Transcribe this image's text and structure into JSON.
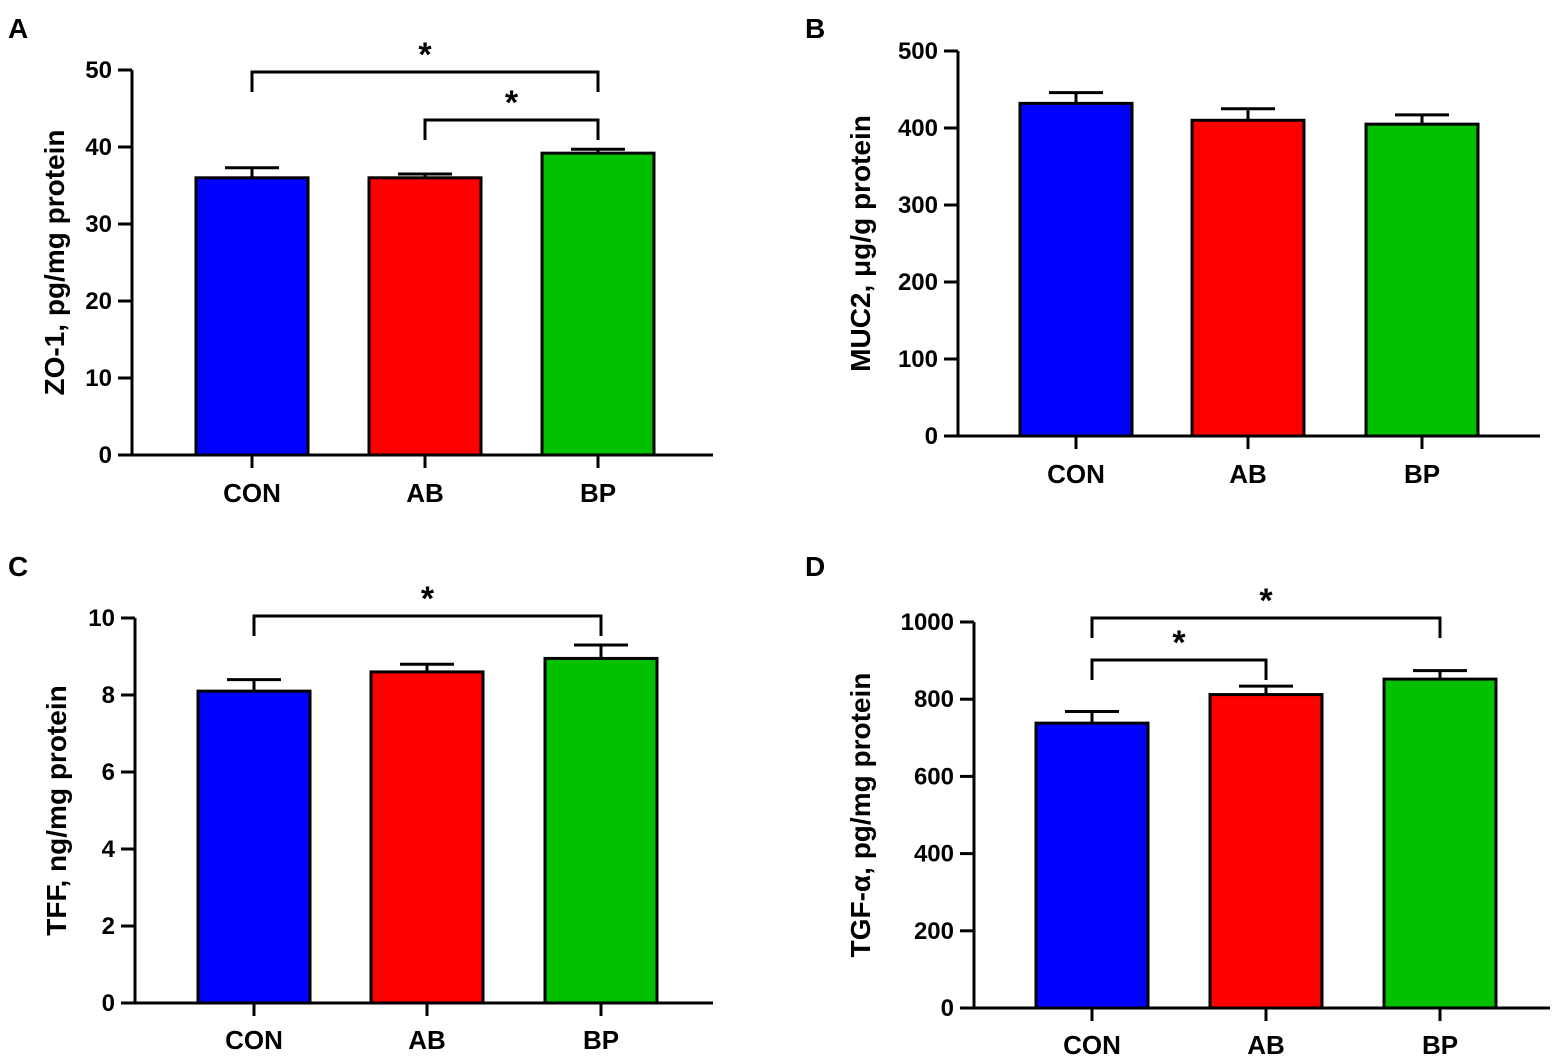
{
  "colors": {
    "CON": "#0000ff",
    "AB": "#ff0000",
    "BP": "#00c000",
    "ink": "#000000"
  },
  "chart_data": [
    {
      "panel": "A",
      "type": "bar",
      "categories": [
        "CON",
        "AB",
        "BP"
      ],
      "values": [
        36,
        36,
        39.2
      ],
      "errors": [
        1.3,
        0.5,
        0.5
      ],
      "ylabel": "ZO-1, pg/mg protein",
      "ylim": [
        0,
        50
      ],
      "yticks": [
        0,
        10,
        20,
        30,
        40,
        50
      ],
      "significance": [
        {
          "from": "CON",
          "to": "BP",
          "label": "*"
        },
        {
          "from": "AB",
          "to": "BP",
          "label": "*"
        }
      ]
    },
    {
      "panel": "B",
      "type": "bar",
      "categories": [
        "CON",
        "AB",
        "BP"
      ],
      "values": [
        432,
        410,
        405
      ],
      "errors": [
        14,
        15,
        12
      ],
      "ylabel": "MUC2, μg/g protein",
      "ylim": [
        0,
        500
      ],
      "yticks": [
        0,
        100,
        200,
        300,
        400,
        500
      ],
      "significance": []
    },
    {
      "panel": "C",
      "type": "bar",
      "categories": [
        "CON",
        "AB",
        "BP"
      ],
      "values": [
        8.1,
        8.6,
        8.95
      ],
      "errors": [
        0.3,
        0.2,
        0.35
      ],
      "ylabel": "TFF, ng/mg protein",
      "ylim": [
        0,
        10
      ],
      "yticks": [
        0,
        2,
        4,
        6,
        8,
        10
      ],
      "significance": [
        {
          "from": "CON",
          "to": "BP",
          "label": "*"
        }
      ]
    },
    {
      "panel": "D",
      "type": "bar",
      "categories": [
        "CON",
        "AB",
        "BP"
      ],
      "values": [
        738,
        812,
        852
      ],
      "errors": [
        30,
        22,
        22
      ],
      "ylabel": "TGF-α, pg/mg protein",
      "ylim": [
        0,
        1000
      ],
      "yticks": [
        0,
        200,
        400,
        600,
        800,
        1000
      ],
      "significance": [
        {
          "from": "CON",
          "to": "AB",
          "label": "*"
        },
        {
          "from": "CON",
          "to": "BP",
          "label": "*"
        }
      ]
    }
  ]
}
